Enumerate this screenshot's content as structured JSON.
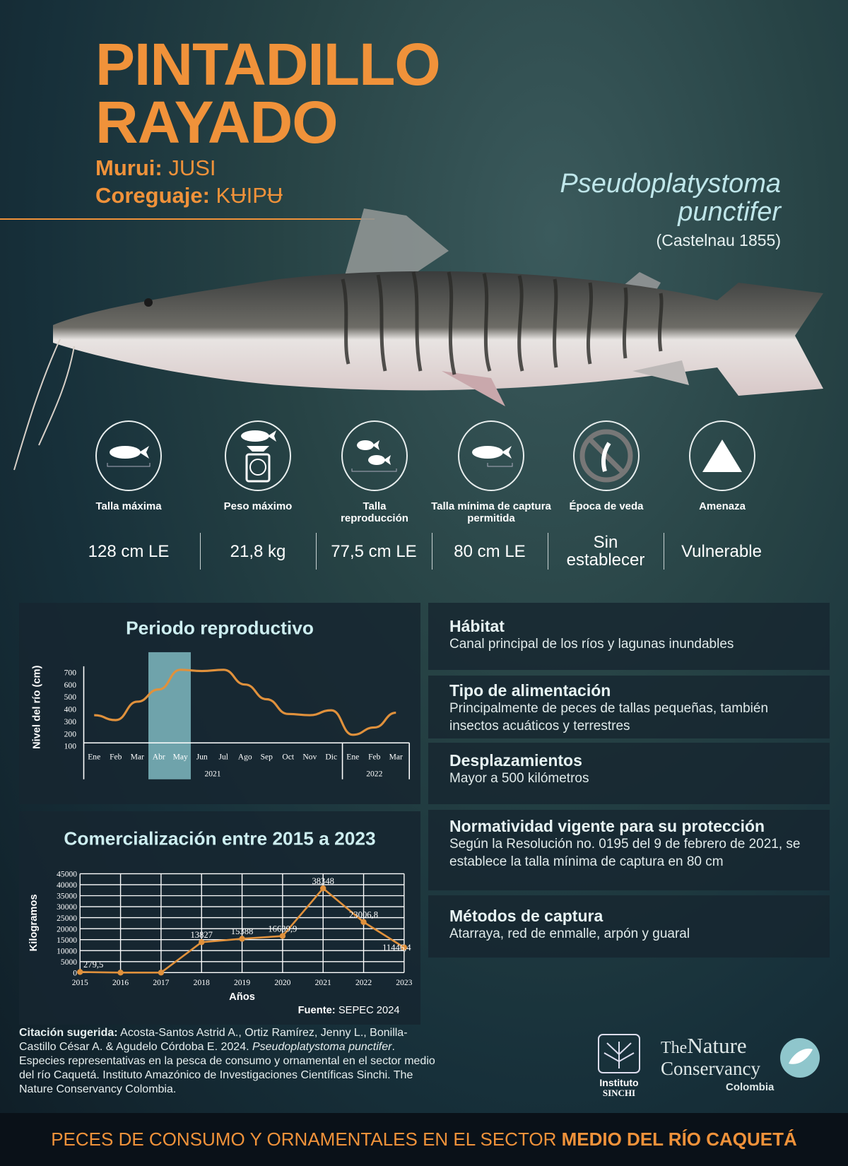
{
  "header": {
    "title_line1": "PINTADILLO",
    "title_line2": "RAYADO",
    "murui_label": "Murui:",
    "murui_name": "JUSI",
    "coreguaje_label": "Coreguaje:",
    "coreguaje_name": "KɄIPɄ"
  },
  "species": {
    "genus": "Pseudoplatystoma",
    "epithet": "punctifer",
    "author": "(Castelnau 1855)"
  },
  "stats": [
    {
      "icon": "fish-length-icon",
      "label": "Talla máxima",
      "value": "128 cm LE"
    },
    {
      "icon": "fish-scale-icon",
      "label": "Peso máximo",
      "value": "21,8 kg"
    },
    {
      "icon": "two-fish-icon",
      "label": "Talla reproducción",
      "value": "77,5 cm LE"
    },
    {
      "icon": "fish-min-length-icon",
      "label": "Talla mínima de captura permitida",
      "value": "80 cm LE"
    },
    {
      "icon": "no-fishing-icon",
      "label": "Época de veda",
      "value": "Sin establecer"
    },
    {
      "icon": "triangle-threat-icon",
      "label": "Amenaza",
      "value": "Vulnerable"
    }
  ],
  "colors": {
    "accent": "#f0923a",
    "highlight": "#6fa3ab",
    "title_text": "#bfe6ea"
  },
  "chart_data": [
    {
      "type": "line",
      "title": "Periodo reproductivo",
      "ylabel": "Nivel del río (cm)",
      "xlabel": "",
      "categories": [
        "Ene",
        "Feb",
        "Mar",
        "Abr",
        "May",
        "Jun",
        "Jul",
        "Ago",
        "Sep",
        "Oct",
        "Nov",
        "Dic",
        "Ene",
        "Feb",
        "Mar"
      ],
      "year_groups": [
        {
          "label": "2021",
          "from": 0,
          "to": 11
        },
        {
          "label": "2022",
          "from": 12,
          "to": 14
        }
      ],
      "values": [
        350,
        310,
        460,
        560,
        720,
        710,
        720,
        600,
        480,
        360,
        350,
        390,
        190,
        250,
        370
      ],
      "yticks": [
        100,
        200,
        300,
        400,
        500,
        600,
        700
      ],
      "ylim": [
        100,
        700
      ],
      "highlight": {
        "from": "Abr",
        "to": "May",
        "meaning": "reproductive period"
      },
      "grid": false
    },
    {
      "type": "line",
      "title": "Comercialización entre 2015 a 2023",
      "ylabel": "Kilogramos",
      "xlabel": "Años",
      "categories": [
        "2015",
        "2016",
        "2017",
        "2018",
        "2019",
        "2020",
        "2021",
        "2022",
        "2023"
      ],
      "values": [
        279.5,
        0,
        0,
        13827,
        15388,
        16639.9,
        38348,
        23006.8,
        11446.4
      ],
      "data_labels": [
        "279,5",
        "",
        "",
        "13827",
        "15388",
        "16639,9",
        "38348",
        "23006,8",
        "11446,4"
      ],
      "yticks": [
        0,
        5000,
        10000,
        15000,
        20000,
        25000,
        30000,
        35000,
        40000,
        45000
      ],
      "ylim": [
        0,
        45000
      ],
      "grid": true,
      "source_label": "Fuente:",
      "source": "SEPEC 2024"
    }
  ],
  "info": [
    {
      "title": "Hábitat",
      "text": "Canal principal de los ríos y lagunas inundables"
    },
    {
      "title": "Tipo de alimentación",
      "text": "Principalmente de peces de tallas pequeñas, también insectos acuáticos y terrestres"
    },
    {
      "title": "Desplazamientos",
      "text": "Mayor a 500 kilómetros"
    },
    {
      "title": "Normatividad vigente para su protección",
      "text": "Según la Resolución no. 0195 del 9 de febrero de 2021, se establece la talla mínima de captura en 80 cm"
    },
    {
      "title": "Métodos de captura",
      "text": "Atarraya, red de enmalle, arpón y guaral"
    }
  ],
  "citation": {
    "label": "Citación sugerida:",
    "authors": " Acosta-Santos Astrid A., Ortiz Ramírez, Jenny L., Bonilla-Castillo César A. & Agudelo Córdoba E. 2024. ",
    "italic": "Pseudoplatystoma punctifer",
    "rest": ". Especies representativas en la pesca de consumo y ornamental en el sector medio del  río Caquetá. Instituto Amazónico de Investigaciones Científicas Sinchi. The Nature Conservancy Colombia."
  },
  "logos": {
    "sinchi_line1": "Instituto",
    "sinchi_line2": "SINCHI",
    "tnc_the": "The",
    "tnc_nature": "Nature",
    "tnc_conservancy": "Conservancy",
    "tnc_country": "Colombia"
  },
  "footer": {
    "text": "PECES DE CONSUMO Y ORNAMENTALES EN EL SECTOR ",
    "bold": "MEDIO DEL RÍO CAQUETÁ"
  }
}
